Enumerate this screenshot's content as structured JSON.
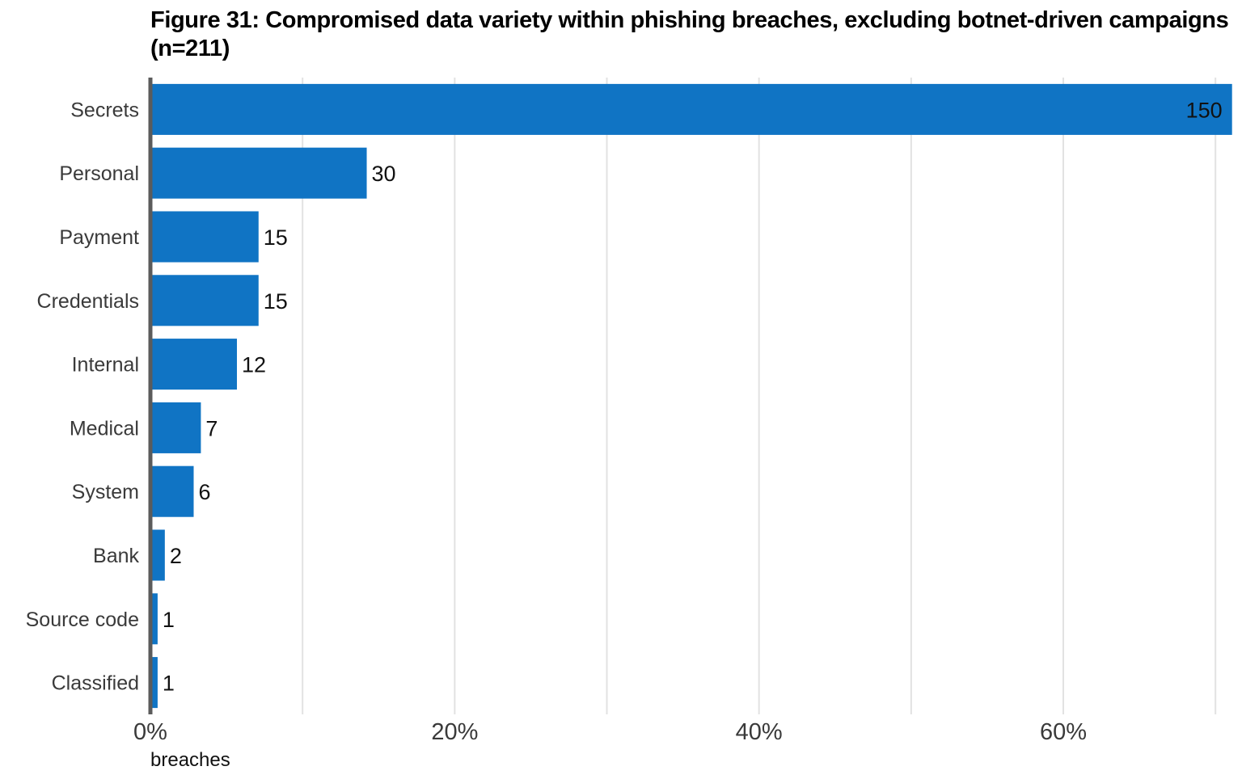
{
  "chart_data": {
    "type": "bar",
    "orientation": "horizontal",
    "title": "Figure 31: Compromised data variety within phishing breaches, excluding botnet-driven campaigns (n=211)",
    "xlabel": "breaches",
    "ylabel": "",
    "n": 211,
    "categories": [
      "Secrets",
      "Personal",
      "Payment",
      "Credentials",
      "Internal",
      "Medical",
      "System",
      "Bank",
      "Source code",
      "Classified"
    ],
    "values": [
      150,
      30,
      15,
      15,
      12,
      7,
      6,
      2,
      1,
      1
    ],
    "value_labels": [
      "150",
      "30",
      "15",
      "15",
      "12",
      "7",
      "6",
      "2",
      "1",
      "1"
    ],
    "x_ticks": [
      0,
      0.2,
      0.4,
      0.6
    ],
    "x_tick_labels": [
      "0%",
      "20%",
      "40%",
      "60%"
    ],
    "x_minor_gridlines": [
      0.1,
      0.3,
      0.5,
      0.7
    ],
    "xlim": [
      0,
      0.71
    ],
    "grid": true,
    "legend": "none",
    "colors": {
      "bar": "#1074c4",
      "gridline": "#e2e2e2",
      "axis_line": "#5b5b5b"
    }
  }
}
